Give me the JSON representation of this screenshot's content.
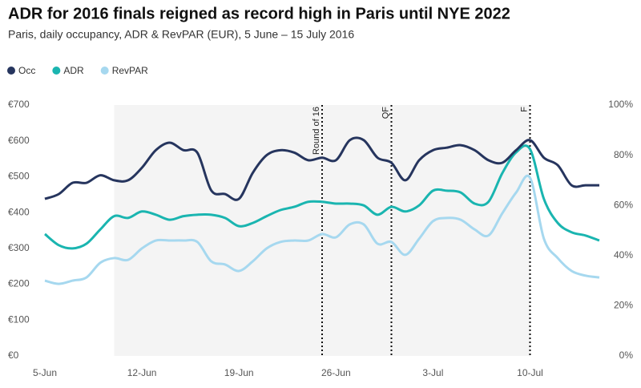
{
  "chart_data": {
    "type": "line",
    "title": "ADR for 2016 finals reigned as record high in Paris until NYE 2022",
    "subtitle": "Paris, daily occupancy, ADR & RevPAR (EUR), 5 June – 15 July 2016",
    "categories": [
      "5-Jun",
      null,
      null,
      null,
      null,
      null,
      null,
      "12-Jun",
      null,
      null,
      null,
      null,
      null,
      null,
      "19-Jun",
      null,
      null,
      null,
      null,
      null,
      null,
      "26-Jun",
      null,
      null,
      null,
      null,
      null,
      null,
      "3-Jul",
      null,
      null,
      null,
      null,
      null,
      null,
      "10-Jul",
      null,
      null,
      null,
      null,
      null
    ],
    "series": [
      {
        "name": "Occ",
        "color": "#26355e",
        "axis": "y2",
        "values": [
          62.6,
          64.5,
          69,
          69,
          72,
          70,
          70,
          75,
          82,
          85,
          82,
          81,
          66,
          64.5,
          62.6,
          73,
          80,
          82,
          81,
          78,
          79,
          78,
          86,
          86,
          79,
          77,
          70,
          78,
          82,
          83,
          84,
          82,
          78,
          77,
          82,
          86,
          79,
          76,
          68,
          68,
          68
        ]
      },
      {
        "name": "ADR",
        "color": "#1ab5b0",
        "values": [
          340,
          309,
          300,
          313,
          353,
          390,
          385,
          403,
          394,
          380,
          390,
          394,
          394,
          385,
          362,
          371,
          390,
          407,
          416,
          430,
          430,
          425,
          425,
          420,
          394,
          416,
          403,
          420,
          461,
          461,
          456,
          425,
          430,
          510,
          568,
          577,
          438,
          371,
          345,
          336,
          322
        ]
      },
      {
        "name": "RevPAR",
        "color": "#a6d8ef",
        "values": [
          210,
          201,
          210,
          219,
          260,
          273,
          268,
          300,
          322,
          322,
          322,
          318,
          264,
          255,
          237,
          264,
          300,
          318,
          322,
          322,
          340,
          331,
          367,
          367,
          313,
          318,
          282,
          327,
          376,
          385,
          380,
          353,
          336,
          398,
          456,
          497,
          327,
          273,
          237,
          224,
          219
        ]
      }
    ],
    "ylim": [
      0,
      700
    ],
    "yticks": [
      {
        "value": 0,
        "label": "€0"
      },
      {
        "value": 100,
        "label": "€100"
      },
      {
        "value": 200,
        "label": "€200"
      },
      {
        "value": 300,
        "label": "€300"
      },
      {
        "value": 400,
        "label": "€400"
      },
      {
        "value": 500,
        "label": "€500"
      },
      {
        "value": 600,
        "label": "€600"
      },
      {
        "value": 700,
        "label": "€700"
      }
    ],
    "y2lim": [
      0,
      100
    ],
    "y2ticks": [
      {
        "value": 0,
        "label": "0%"
      },
      {
        "value": 20,
        "label": "20%"
      },
      {
        "value": 40,
        "label": "40%"
      },
      {
        "value": 60,
        "label": "60%"
      },
      {
        "value": 80,
        "label": "80%"
      },
      {
        "value": 100,
        "label": "100%"
      }
    ],
    "shade": [
      5,
      35
    ],
    "annotations": [
      {
        "text": "Round of 16",
        "x": 20
      },
      {
        "text": "QF",
        "x": 25
      },
      {
        "text": "F",
        "x": 35
      }
    ],
    "legend": "top-left"
  }
}
